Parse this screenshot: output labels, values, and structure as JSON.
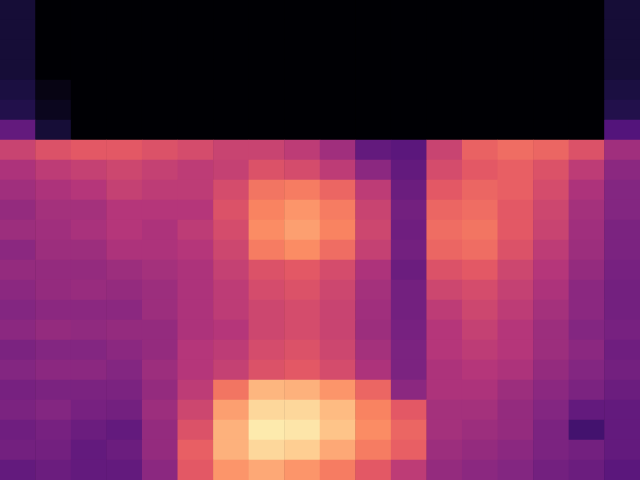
{
  "chart_data": {
    "type": "heatmap",
    "tick_labels": false,
    "zlim": [
      0,
      100
    ],
    "cells": [
      [
        10,
        0,
        0,
        0,
        0,
        0,
        0,
        0,
        0,
        0,
        0,
        0,
        0,
        0,
        0,
        0,
        0,
        10
      ],
      [
        10,
        0,
        0,
        0,
        0,
        0,
        0,
        0,
        0,
        0,
        0,
        0,
        0,
        0,
        0,
        0,
        0,
        10
      ],
      [
        10,
        0,
        0,
        0,
        0,
        0,
        0,
        0,
        0,
        0,
        0,
        0,
        0,
        0,
        0,
        0,
        0,
        10
      ],
      [
        10,
        0,
        0,
        0,
        0,
        0,
        0,
        0,
        0,
        0,
        0,
        0,
        0,
        0,
        0,
        0,
        0,
        10
      ],
      [
        12,
        3,
        0,
        0,
        0,
        0,
        0,
        0,
        0,
        0,
        0,
        0,
        0,
        0,
        0,
        0,
        0,
        12
      ],
      [
        14,
        5,
        0,
        0,
        0,
        0,
        0,
        0,
        0,
        0,
        0,
        0,
        0,
        0,
        0,
        0,
        0,
        14
      ],
      [
        30,
        10,
        0,
        0,
        0,
        0,
        0,
        0,
        0,
        0,
        0,
        0,
        0,
        0,
        0,
        0,
        0,
        26
      ],
      [
        55,
        60,
        62,
        62,
        60,
        58,
        55,
        55,
        52,
        45,
        30,
        28,
        55,
        65,
        68,
        66,
        60,
        45
      ],
      [
        48,
        52,
        54,
        56,
        54,
        52,
        54,
        60,
        58,
        52,
        40,
        30,
        58,
        62,
        64,
        60,
        52,
        40
      ],
      [
        45,
        48,
        50,
        54,
        52,
        52,
        58,
        70,
        72,
        66,
        52,
        32,
        62,
        66,
        64,
        58,
        48,
        38
      ],
      [
        42,
        46,
        46,
        50,
        50,
        50,
        60,
        74,
        78,
        72,
        55,
        34,
        66,
        68,
        62,
        56,
        46,
        38
      ],
      [
        44,
        45,
        47,
        50,
        48,
        52,
        58,
        76,
        80,
        74,
        56,
        33,
        68,
        70,
        62,
        55,
        45,
        36
      ],
      [
        40,
        44,
        44,
        48,
        48,
        50,
        56,
        72,
        76,
        68,
        54,
        34,
        66,
        68,
        60,
        52,
        44,
        36
      ],
      [
        42,
        42,
        42,
        44,
        46,
        48,
        54,
        60,
        62,
        58,
        48,
        32,
        60,
        62,
        56,
        50,
        42,
        35
      ],
      [
        40,
        42,
        43,
        42,
        44,
        48,
        52,
        58,
        60,
        56,
        46,
        34,
        56,
        58,
        54,
        48,
        40,
        34
      ],
      [
        38,
        40,
        40,
        40,
        44,
        48,
        52,
        56,
        58,
        55,
        45,
        34,
        52,
        56,
        52,
        46,
        40,
        34
      ],
      [
        40,
        42,
        41,
        42,
        42,
        48,
        50,
        56,
        58,
        55,
        44,
        35,
        50,
        54,
        50,
        44,
        38,
        35
      ],
      [
        36,
        38,
        38,
        40,
        42,
        50,
        52,
        58,
        60,
        56,
        46,
        36,
        50,
        52,
        50,
        44,
        40,
        33
      ],
      [
        38,
        40,
        40,
        38,
        44,
        50,
        54,
        60,
        62,
        58,
        48,
        36,
        48,
        50,
        48,
        42,
        38,
        34
      ],
      [
        35,
        36,
        36,
        36,
        42,
        52,
        70,
        85,
        84,
        78,
        66,
        40,
        48,
        48,
        44,
        40,
        36,
        32
      ],
      [
        36,
        38,
        35,
        34,
        44,
        56,
        80,
        92,
        92,
        86,
        74,
        62,
        46,
        46,
        42,
        38,
        30,
        30
      ],
      [
        33,
        35,
        32,
        30,
        42,
        60,
        84,
        96,
        95,
        88,
        76,
        66,
        46,
        44,
        42,
        36,
        22,
        30
      ],
      [
        34,
        34,
        30,
        32,
        42,
        64,
        84,
        92,
        90,
        82,
        72,
        64,
        44,
        42,
        40,
        36,
        34,
        30
      ],
      [
        30,
        32,
        30,
        30,
        40,
        62,
        78,
        82,
        78,
        72,
        62,
        52,
        42,
        40,
        38,
        34,
        32,
        28
      ]
    ]
  }
}
